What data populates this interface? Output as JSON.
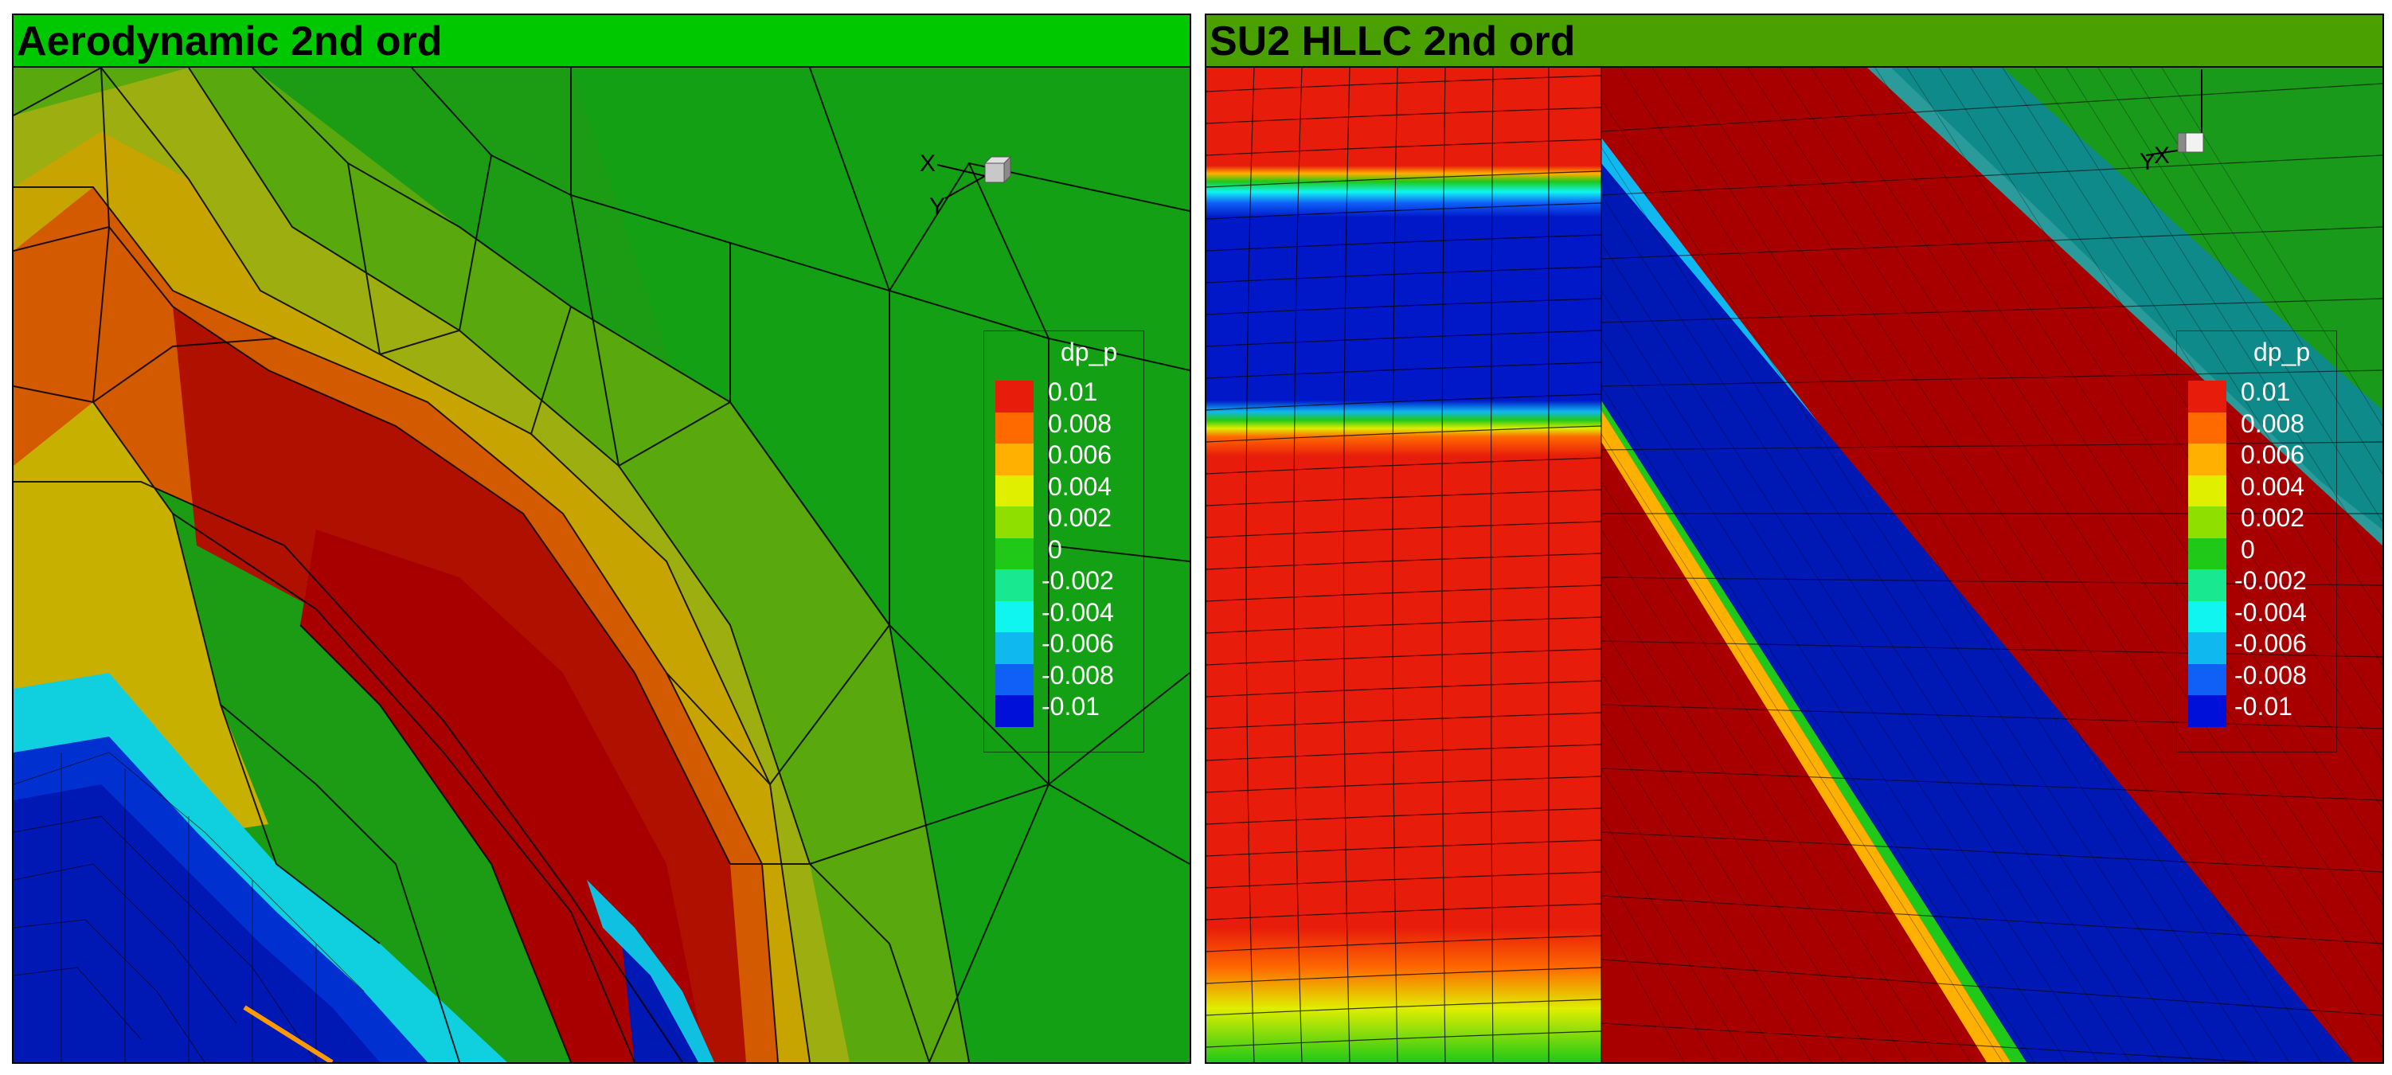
{
  "panels": [
    {
      "title": "Aerodynamic 2nd ord",
      "axes": {
        "x": "X",
        "y": "Y"
      }
    },
    {
      "title": "SU2 HLLC 2nd ord",
      "axes": {
        "x": "X",
        "y": "Y"
      }
    }
  ],
  "legend": {
    "title": "dp_p",
    "levels": [
      {
        "label": "0.01",
        "color": "#e81c0a"
      },
      {
        "label": "0.008",
        "color": "#ff6a00"
      },
      {
        "label": "0.006",
        "color": "#ffb000"
      },
      {
        "label": "0.004",
        "color": "#e0ee00"
      },
      {
        "label": "0.002",
        "color": "#8fe000"
      },
      {
        "label": "0",
        "color": "#20c818"
      },
      {
        "label": "-0.002",
        "color": "#18e890"
      },
      {
        "label": "-0.004",
        "color": "#10f5f0"
      },
      {
        "label": "-0.006",
        "color": "#10b8f0"
      },
      {
        "label": "-0.008",
        "color": "#1060f8"
      },
      {
        "label": "-0.01",
        "color": "#0010d8"
      }
    ]
  },
  "colors": {
    "left_title_bg": "#00c800",
    "right_title_bg": "#4aa000",
    "field_zero": "#1a9e1a",
    "high": "#a80000",
    "low": "#0018b4"
  }
}
